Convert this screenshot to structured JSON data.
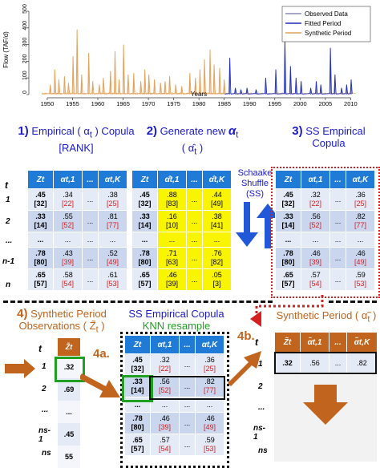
{
  "chart_data": {
    "type": "line",
    "ylabel": "Flow (TAF/d)",
    "xlabel": "Years",
    "yticks": [
      "0",
      "100",
      "200",
      "300",
      "400",
      "500"
    ],
    "ylim": [
      0,
      500
    ],
    "xticks": [
      "1950",
      "1955",
      "1960",
      "1965",
      "1970",
      "1975",
      "1980",
      "1985",
      "1990",
      "1995",
      "2000",
      "2005",
      "2010"
    ],
    "xlim": [
      1947,
      2012
    ],
    "legend": [
      "Observed Data",
      "Fitted Period",
      "Synthetic Period"
    ],
    "legend_position": "top-right",
    "colors": {
      "observed": "#8a8ab8",
      "fitted": "#1f2fb8",
      "synthetic": "#e3a25a"
    },
    "peaks": [
      {
        "year": 1950.6,
        "flow": 60,
        "period": "synthetic"
      },
      {
        "year": 1951.5,
        "flow": 150,
        "period": "synthetic"
      },
      {
        "year": 1952.3,
        "flow": 90,
        "period": "synthetic"
      },
      {
        "year": 1953.4,
        "flow": 110,
        "period": "synthetic"
      },
      {
        "year": 1954.2,
        "flow": 70,
        "period": "synthetic"
      },
      {
        "year": 1955.1,
        "flow": 230,
        "period": "synthetic"
      },
      {
        "year": 1955.9,
        "flow": 390,
        "period": "synthetic"
      },
      {
        "year": 1956.8,
        "flow": 120,
        "period": "synthetic"
      },
      {
        "year": 1958.2,
        "flow": 250,
        "period": "synthetic"
      },
      {
        "year": 1959.0,
        "flow": 80,
        "period": "synthetic"
      },
      {
        "year": 1960.3,
        "flow": 60,
        "period": "synthetic"
      },
      {
        "year": 1961.1,
        "flow": 100,
        "period": "synthetic"
      },
      {
        "year": 1962.5,
        "flow": 140,
        "period": "synthetic"
      },
      {
        "year": 1963.4,
        "flow": 260,
        "period": "synthetic"
      },
      {
        "year": 1964.2,
        "flow": 90,
        "period": "synthetic"
      },
      {
        "year": 1965.1,
        "flow": 300,
        "period": "synthetic"
      },
      {
        "year": 1966.0,
        "flow": 120,
        "period": "synthetic"
      },
      {
        "year": 1967.1,
        "flow": 130,
        "period": "synthetic"
      },
      {
        "year": 1968.5,
        "flow": 80,
        "period": "synthetic"
      },
      {
        "year": 1969.3,
        "flow": 150,
        "period": "synthetic"
      },
      {
        "year": 1970.1,
        "flow": 120,
        "period": "synthetic"
      },
      {
        "year": 1971.2,
        "flow": 90,
        "period": "synthetic"
      },
      {
        "year": 1972.4,
        "flow": 70,
        "period": "synthetic"
      },
      {
        "year": 1973.3,
        "flow": 80,
        "period": "synthetic"
      },
      {
        "year": 1974.2,
        "flow": 110,
        "period": "synthetic"
      },
      {
        "year": 1975.4,
        "flow": 60,
        "period": "synthetic"
      },
      {
        "year": 1976.6,
        "flow": 50,
        "period": "synthetic"
      },
      {
        "year": 1978.2,
        "flow": 130,
        "period": "synthetic"
      },
      {
        "year": 1979.3,
        "flow": 100,
        "period": "synthetic"
      },
      {
        "year": 1980.2,
        "flow": 150,
        "period": "synthetic"
      },
      {
        "year": 1981.1,
        "flow": 210,
        "period": "synthetic"
      },
      {
        "year": 1982.2,
        "flow": 270,
        "period": "synthetic"
      },
      {
        "year": 1983.0,
        "flow": 180,
        "period": "synthetic"
      },
      {
        "year": 1984.1,
        "flow": 160,
        "period": "synthetic"
      },
      {
        "year": 1985.0,
        "flow": 90,
        "period": "synthetic"
      },
      {
        "year": 1986.1,
        "flow": 220,
        "period": "fitted"
      },
      {
        "year": 1987.2,
        "flow": 40,
        "period": "fitted"
      },
      {
        "year": 1988.3,
        "flow": 30,
        "period": "fitted"
      },
      {
        "year": 1989.5,
        "flow": 40,
        "period": "fitted"
      },
      {
        "year": 1991.3,
        "flow": 30,
        "period": "fitted"
      },
      {
        "year": 1993.2,
        "flow": 100,
        "period": "fitted"
      },
      {
        "year": 1995.2,
        "flow": 150,
        "period": "fitted"
      },
      {
        "year": 1997.0,
        "flow": 330,
        "period": "fitted"
      },
      {
        "year": 1998.1,
        "flow": 170,
        "period": "fitted"
      },
      {
        "year": 1999.2,
        "flow": 100,
        "period": "fitted"
      },
      {
        "year": 2000.2,
        "flow": 80,
        "period": "fitted"
      },
      {
        "year": 2002.1,
        "flow": 40,
        "period": "fitted"
      },
      {
        "year": 2003.2,
        "flow": 80,
        "period": "fitted"
      },
      {
        "year": 2004.1,
        "flow": 60,
        "period": "fitted"
      },
      {
        "year": 2006.0,
        "flow": 280,
        "period": "fitted"
      },
      {
        "year": 2006.9,
        "flow": 120,
        "period": "fitted"
      },
      {
        "year": 2008.2,
        "flow": 40,
        "period": "fitted"
      },
      {
        "year": 2009.2,
        "flow": 60,
        "period": "fitted"
      },
      {
        "year": 2010.1,
        "flow": 90,
        "period": "fitted"
      }
    ]
  },
  "step1": {
    "num": "1)",
    "title": "Empirical ( α",
    "sub_t": "t",
    "title_end": " ) Copula",
    "rank": "[RANK]"
  },
  "step2": {
    "num": "2)",
    "title": "Generate new ",
    "alpha": "α",
    "sub_t": "t",
    "line2": "( α̂",
    "line2_sub": "t",
    "line2_end": " )"
  },
  "step3": {
    "num": "3)",
    "title": "SS Empirical",
    "line2": "Copula"
  },
  "schaake": {
    "l1": "Schaake",
    "l2": "Shuffle",
    "l3": "(SS)"
  },
  "step4": {
    "num": "4)",
    "title": "Synthetic Period",
    "line2": "Observations ( Z̃",
    "sub": "t",
    "line2_end": " )"
  },
  "ssknn": {
    "title": "SS Empirical Copula",
    "sub": "KNN resample"
  },
  "step4a": "4a.",
  "step4b": "4b.",
  "synth_title": "Synthetic Period ( α̃",
  "synth_sub": "t",
  "synth_end": " )",
  "row_header": "t",
  "row_labels": [
    "1",
    "2",
    "...",
    "n-1",
    "n"
  ],
  "row_labels_s": [
    "1",
    "2",
    "...",
    "ns-1",
    "ns"
  ],
  "table1": {
    "headers": [
      "Zt",
      "αt,1",
      "...",
      "αt,K"
    ],
    "rows": [
      [
        ".45",
        "[32]",
        ".34",
        "[22]",
        "...",
        ".38",
        "[25]"
      ],
      [
        ".33",
        "[14]",
        ".55",
        "[52]",
        "...",
        ".81",
        "[77]"
      ],
      [
        "...",
        "",
        "...",
        "",
        "...",
        "...",
        ""
      ],
      [
        ".78",
        "[80]",
        ".43",
        "[39]",
        "...",
        ".52",
        "[49]"
      ],
      [
        ".65",
        "[57]",
        ".58",
        "[54]",
        "...",
        ".61",
        "[53]"
      ]
    ]
  },
  "table2": {
    "headers": [
      "Zt",
      "α̂t,1",
      "...",
      "α̂t,K"
    ],
    "rows": [
      [
        ".45",
        "[32]",
        ".88",
        "[83]",
        "...",
        ".44",
        "[49]"
      ],
      [
        ".33",
        "[14]",
        ".16",
        "[10]",
        "...",
        ".38",
        "[41]"
      ],
      [
        "...",
        "",
        "...",
        "",
        "...",
        "...",
        ""
      ],
      [
        ".78",
        "[80]",
        ".71",
        "[63]",
        "...",
        ".76",
        "[82]"
      ],
      [
        ".65",
        "[57]",
        ".46",
        "[39]",
        "...",
        ".05",
        "[3]"
      ]
    ]
  },
  "table3": {
    "headers": [
      "Zt",
      "αt,1",
      "...",
      "αt,K"
    ],
    "rows": [
      [
        ".45",
        "[32]",
        ".32",
        "[22]",
        "...",
        ".36",
        "[25]"
      ],
      [
        ".33",
        "[14]",
        ".56",
        "[52]",
        "...",
        ".82",
        "[77]"
      ],
      [
        "...",
        "",
        "...",
        "",
        "...",
        "...",
        ""
      ],
      [
        ".78",
        "[80]",
        ".46",
        "[39]",
        "...",
        ".46",
        "[49]"
      ],
      [
        ".65",
        "[57]",
        ".57",
        "[54]",
        "...",
        ".59",
        "[53]"
      ]
    ]
  },
  "table4": {
    "headers": [
      "Zt",
      "αt,1",
      "...",
      "αt,K"
    ],
    "rows": [
      [
        ".45",
        "[32]",
        ".32",
        "[22]",
        "...",
        ".36",
        "[25]"
      ],
      [
        ".33",
        "[14]",
        ".56",
        "[52]",
        "...",
        ".82",
        "[77]"
      ],
      [
        "...",
        "",
        "...",
        "",
        "...",
        "...",
        ""
      ],
      [
        ".78",
        "[80]",
        ".46",
        "[39]",
        "...",
        ".46",
        "[49]"
      ],
      [
        ".65",
        "[57]",
        ".57",
        "[54]",
        "...",
        ".59",
        "[53]"
      ]
    ]
  },
  "obs_table": {
    "header": "Z̃t",
    "values": [
      ".32",
      ".69",
      "...",
      ".45",
      "55"
    ]
  },
  "synth_table": {
    "headers": [
      "Z̃t",
      "α̃t,1",
      "...",
      "α̃t,K"
    ],
    "row": [
      ".32",
      ".56",
      "...",
      ".82"
    ]
  }
}
